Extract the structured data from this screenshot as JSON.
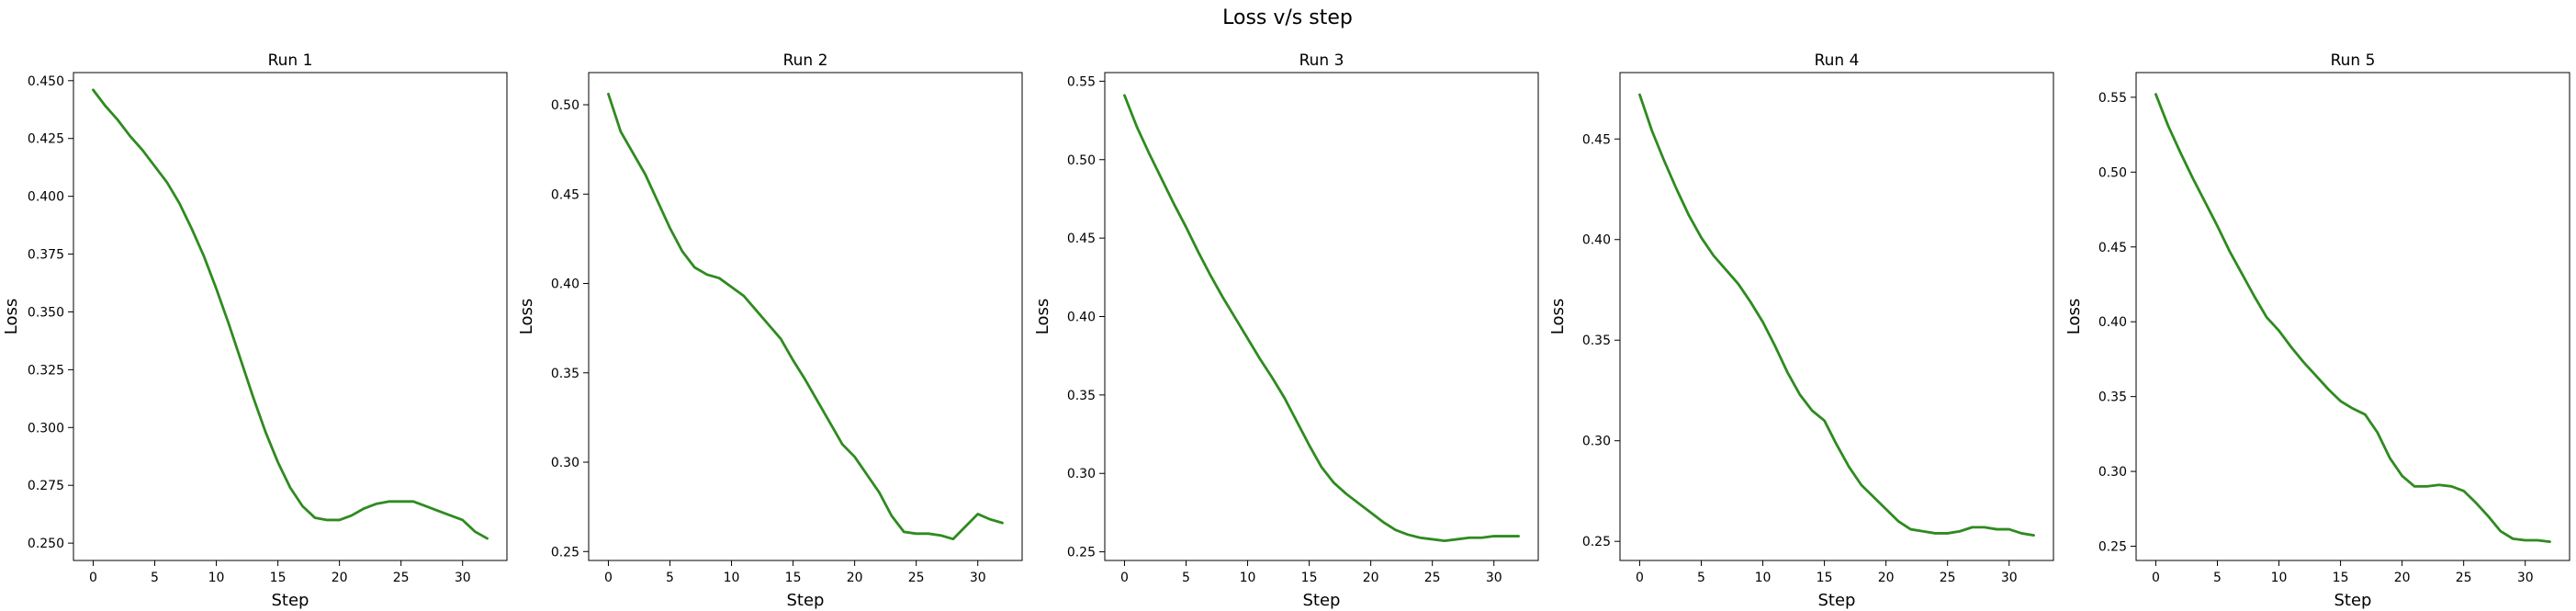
{
  "figure": {
    "title": "Loss v/s step"
  },
  "colors": {
    "line": "#2e8b1f",
    "frame": "#000000",
    "background": "#ffffff"
  },
  "chart_data": [
    {
      "type": "line",
      "title": "Run 1",
      "xlabel": "Step",
      "ylabel": "Loss",
      "xlim": [
        -1.6,
        33.6
      ],
      "ylim": [
        0.2425,
        0.4535
      ],
      "xticks": [
        0,
        5,
        10,
        15,
        20,
        25,
        30
      ],
      "yticks": [
        0.25,
        0.275,
        0.3,
        0.325,
        0.35,
        0.375,
        0.4,
        0.425,
        0.45
      ],
      "ytick_labels": [
        "0.250",
        "0.275",
        "0.300",
        "0.325",
        "0.350",
        "0.375",
        "0.400",
        "0.425",
        "0.450"
      ],
      "grid": false,
      "x": [
        0,
        1,
        2,
        3,
        4,
        5,
        6,
        7,
        8,
        9,
        10,
        11,
        12,
        13,
        14,
        15,
        16,
        17,
        18,
        19,
        20,
        21,
        22,
        23,
        24,
        25,
        26,
        27,
        28,
        29,
        30,
        31,
        32
      ],
      "y": [
        0.446,
        0.439,
        0.433,
        0.426,
        0.42,
        0.413,
        0.406,
        0.397,
        0.386,
        0.374,
        0.36,
        0.345,
        0.329,
        0.313,
        0.298,
        0.285,
        0.274,
        0.266,
        0.261,
        0.26,
        0.26,
        0.262,
        0.265,
        0.267,
        0.268,
        0.268,
        0.268,
        0.266,
        0.264,
        0.262,
        0.26,
        0.255,
        0.252
      ]
    },
    {
      "type": "line",
      "title": "Run 2",
      "xlabel": "Step",
      "ylabel": "Loss",
      "xlim": [
        -1.6,
        33.6
      ],
      "ylim": [
        0.245,
        0.518
      ],
      "xticks": [
        0,
        5,
        10,
        15,
        20,
        25,
        30
      ],
      "yticks": [
        0.25,
        0.3,
        0.35,
        0.4,
        0.45,
        0.5
      ],
      "ytick_labels": [
        "0.25",
        "0.30",
        "0.35",
        "0.40",
        "0.45",
        "0.50"
      ],
      "grid": false,
      "x": [
        0,
        1,
        2,
        3,
        4,
        5,
        6,
        7,
        8,
        9,
        10,
        11,
        12,
        13,
        14,
        15,
        16,
        17,
        18,
        19,
        20,
        21,
        22,
        23,
        24,
        25,
        26,
        27,
        28,
        29,
        30,
        31,
        32
      ],
      "y": [
        0.506,
        0.485,
        0.473,
        0.461,
        0.446,
        0.431,
        0.418,
        0.409,
        0.405,
        0.403,
        0.398,
        0.393,
        0.385,
        0.377,
        0.369,
        0.357,
        0.346,
        0.334,
        0.322,
        0.31,
        0.303,
        0.293,
        0.283,
        0.27,
        0.261,
        0.26,
        0.26,
        0.259,
        0.257,
        0.264,
        0.271,
        0.268,
        0.266
      ]
    },
    {
      "type": "line",
      "title": "Run 3",
      "xlabel": "Step",
      "ylabel": "Loss",
      "xlim": [
        -1.6,
        33.6
      ],
      "ylim": [
        0.2445,
        0.5555
      ],
      "xticks": [
        0,
        5,
        10,
        15,
        20,
        25,
        30
      ],
      "yticks": [
        0.25,
        0.3,
        0.35,
        0.4,
        0.45,
        0.5,
        0.55
      ],
      "ytick_labels": [
        "0.25",
        "0.30",
        "0.35",
        "0.40",
        "0.45",
        "0.50",
        "0.55"
      ],
      "grid": false,
      "x": [
        0,
        1,
        2,
        3,
        4,
        5,
        6,
        7,
        8,
        9,
        10,
        11,
        12,
        13,
        14,
        15,
        16,
        17,
        18,
        19,
        20,
        21,
        22,
        23,
        24,
        25,
        26,
        27,
        28,
        29,
        30,
        31,
        32
      ],
      "y": [
        0.541,
        0.521,
        0.504,
        0.488,
        0.472,
        0.457,
        0.441,
        0.426,
        0.412,
        0.399,
        0.386,
        0.373,
        0.361,
        0.348,
        0.333,
        0.318,
        0.304,
        0.294,
        0.287,
        0.281,
        0.275,
        0.269,
        0.264,
        0.261,
        0.259,
        0.258,
        0.257,
        0.258,
        0.259,
        0.259,
        0.26,
        0.26,
        0.26
      ]
    },
    {
      "type": "line",
      "title": "Run 4",
      "xlabel": "Step",
      "ylabel": "Loss",
      "xlim": [
        -1.6,
        33.6
      ],
      "ylim": [
        0.2405,
        0.483
      ],
      "xticks": [
        0,
        5,
        10,
        15,
        20,
        25,
        30
      ],
      "yticks": [
        0.25,
        0.3,
        0.35,
        0.4,
        0.45
      ],
      "ytick_labels": [
        "0.25",
        "0.30",
        "0.35",
        "0.40",
        "0.45"
      ],
      "grid": false,
      "x": [
        0,
        1,
        2,
        3,
        4,
        5,
        6,
        7,
        8,
        9,
        10,
        11,
        12,
        13,
        14,
        15,
        16,
        17,
        18,
        19,
        20,
        21,
        22,
        23,
        24,
        25,
        26,
        27,
        28,
        29,
        30,
        31,
        32
      ],
      "y": [
        0.472,
        0.454,
        0.439,
        0.425,
        0.412,
        0.401,
        0.392,
        0.385,
        0.378,
        0.369,
        0.359,
        0.347,
        0.334,
        0.323,
        0.315,
        0.31,
        0.298,
        0.287,
        0.278,
        0.272,
        0.266,
        0.26,
        0.256,
        0.255,
        0.254,
        0.254,
        0.255,
        0.257,
        0.257,
        0.256,
        0.256,
        0.254,
        0.253
      ]
    },
    {
      "type": "line",
      "title": "Run 5",
      "xlabel": "Step",
      "ylabel": "Loss",
      "xlim": [
        -1.6,
        33.6
      ],
      "ylim": [
        0.2405,
        0.5665
      ],
      "xticks": [
        0,
        5,
        10,
        15,
        20,
        25,
        30
      ],
      "yticks": [
        0.25,
        0.3,
        0.35,
        0.4,
        0.45,
        0.5,
        0.55
      ],
      "ytick_labels": [
        "0.25",
        "0.30",
        "0.35",
        "0.40",
        "0.45",
        "0.50",
        "0.55"
      ],
      "grid": false,
      "x": [
        0,
        1,
        2,
        3,
        4,
        5,
        6,
        7,
        8,
        9,
        10,
        11,
        12,
        13,
        14,
        15,
        16,
        17,
        18,
        19,
        20,
        21,
        22,
        23,
        24,
        25,
        26,
        27,
        28,
        29,
        30,
        31,
        32
      ],
      "y": [
        0.552,
        0.531,
        0.513,
        0.496,
        0.48,
        0.464,
        0.447,
        0.432,
        0.417,
        0.403,
        0.394,
        0.383,
        0.373,
        0.364,
        0.355,
        0.347,
        0.342,
        0.338,
        0.326,
        0.309,
        0.297,
        0.29,
        0.29,
        0.291,
        0.29,
        0.287,
        0.279,
        0.27,
        0.26,
        0.255,
        0.254,
        0.254,
        0.253
      ]
    }
  ]
}
